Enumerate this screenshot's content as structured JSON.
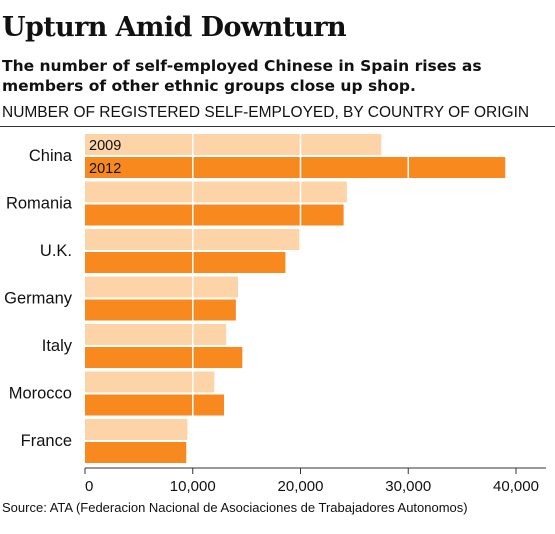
{
  "header": {
    "title": "Upturn Amid Downturn",
    "subtitle": "The number of self-employed Chinese in Spain rises as members of other ethnic groups close up shop.",
    "section_label": "NUMBER OF REGISTERED SELF-EMPLOYED, BY COUNTRY OF ORIGIN"
  },
  "footer": {
    "source": "Source: ATA (Federacion Nacional de Asociaciones de Trabajadores Autonomos)"
  },
  "colors": {
    "series_2009": "#fdd3a8",
    "series_2012": "#f7891f",
    "gridline": "#ffffff",
    "axis": "#333333"
  },
  "chart_data": {
    "type": "bar",
    "orientation": "horizontal",
    "title": "Upturn Amid Downturn",
    "categories": [
      "China",
      "Romania",
      "U.K.",
      "Germany",
      "Italy",
      "Morocco",
      "France"
    ],
    "series": [
      {
        "name": "2009",
        "values": [
          27500,
          24300,
          19900,
          14200,
          13100,
          12000,
          9500
        ]
      },
      {
        "name": "2012",
        "values": [
          39000,
          24000,
          18600,
          14000,
          14600,
          12900,
          9400
        ]
      }
    ],
    "xlim": [
      0,
      40000
    ],
    "xticks": [
      0,
      10000,
      20000,
      30000,
      40000
    ],
    "xtick_labels": [
      "0",
      "10,000",
      "20,000",
      "30,000",
      "40,000"
    ],
    "grid": true,
    "legend": "inside-top-left"
  }
}
